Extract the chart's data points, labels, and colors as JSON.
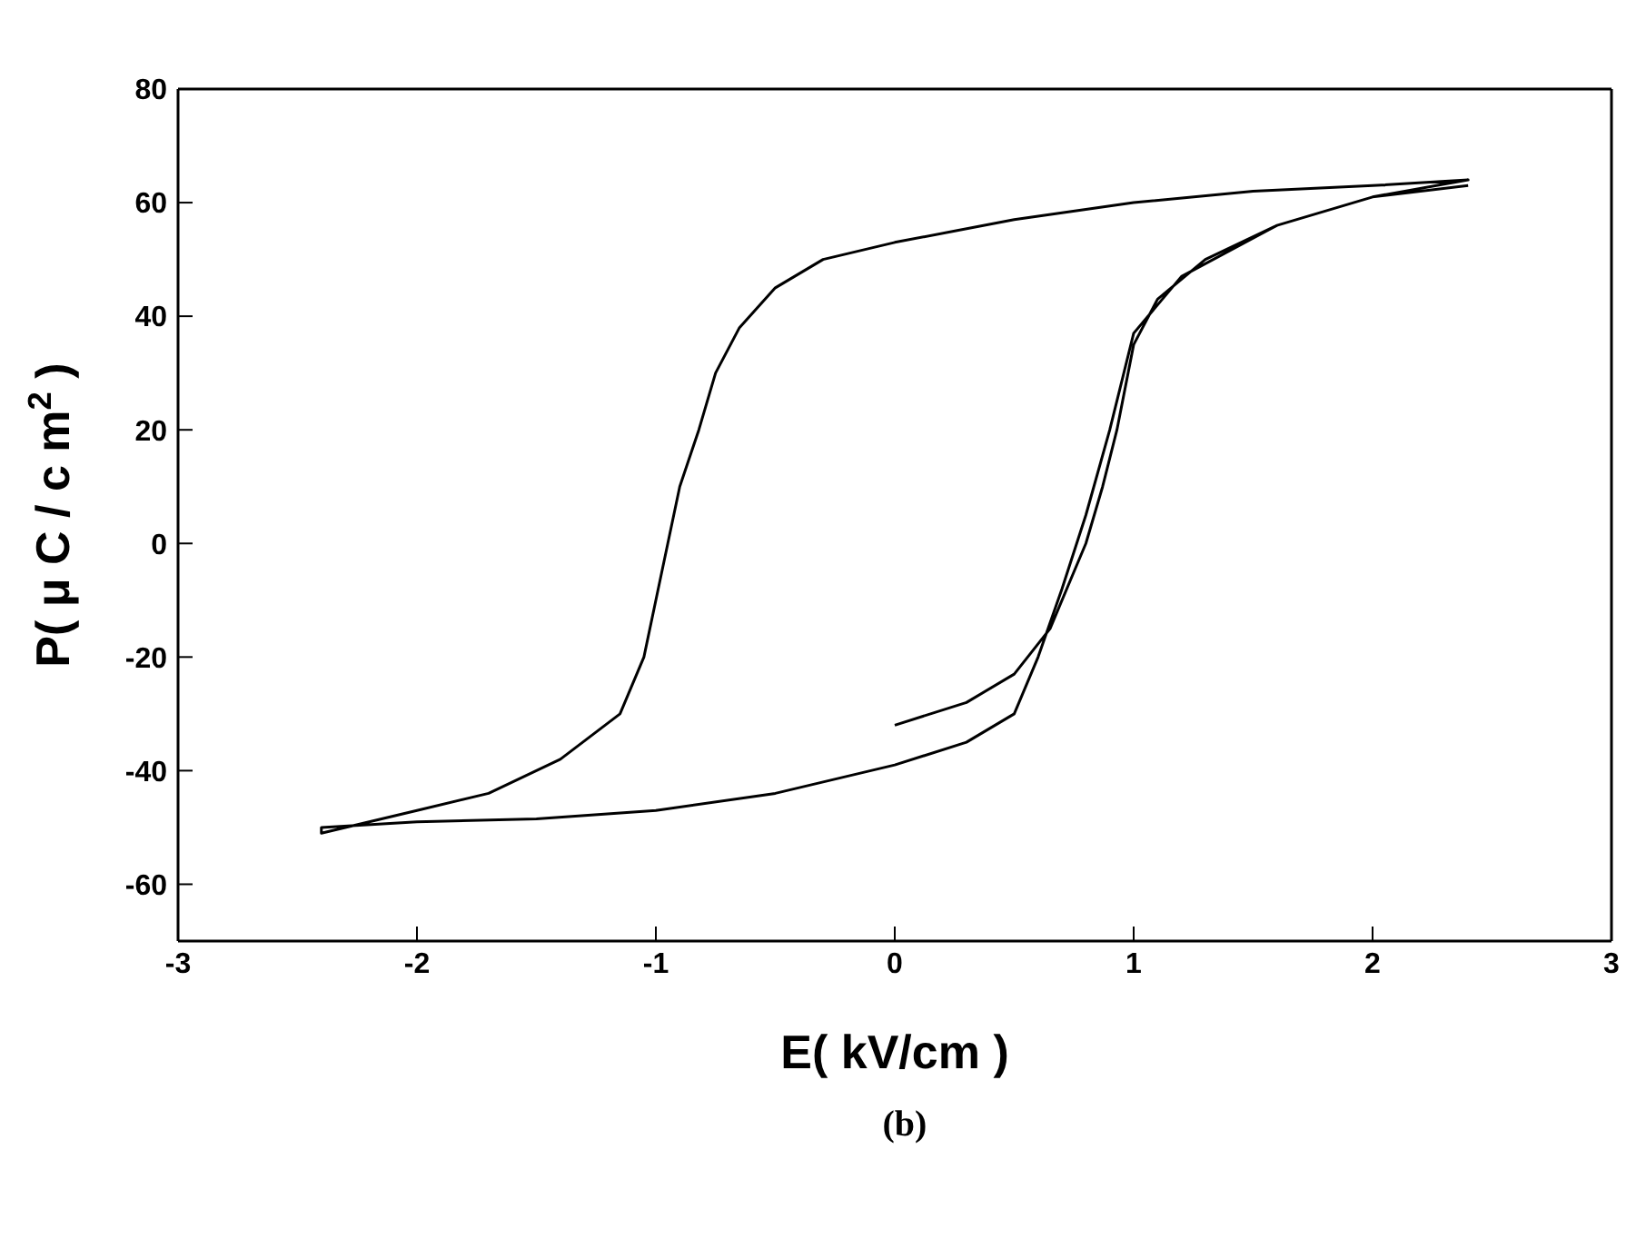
{
  "chart_data": {
    "type": "line",
    "xlabel": "E( kV/cm   )",
    "ylabel": "P( μ C / c m$^{2}$ )",
    "annotations": [
      "(b)"
    ],
    "xlim": [
      -3,
      3
    ],
    "xticks": [
      -3,
      -2,
      -1,
      0,
      1,
      2,
      3
    ],
    "ylim": [
      -70,
      80
    ],
    "yticks": [
      -60,
      -40,
      -20,
      0,
      20,
      40,
      60,
      80
    ],
    "grid": false,
    "marker": "none",
    "line_style": "solid",
    "series": [
      {
        "color": "#000000",
        "x": [
          0,
          0.3,
          0.5,
          0.65,
          0.75,
          0.8,
          0.87,
          0.93,
          1.0,
          1.1,
          1.3,
          1.6,
          2.0,
          2.4,
          2.0,
          1.5,
          1.0,
          0.5,
          0.0,
          -0.3,
          -0.5,
          -0.65,
          -0.75,
          -0.82,
          -0.9,
          -0.95,
          -1.0,
          -1.05,
          -1.15,
          -1.4,
          -1.7,
          -2.0,
          -2.4,
          -2.4,
          -2.0,
          -1.5,
          -1.0,
          -0.5,
          0.0,
          0.3,
          0.5,
          0.6,
          0.7,
          0.8,
          0.9,
          1.0,
          1.2,
          1.6,
          2.0,
          2.4
        ],
        "values": [
          -32,
          -28,
          -23,
          -15,
          -5,
          0,
          10,
          20,
          35,
          43,
          50,
          56,
          61,
          64,
          63,
          62,
          60,
          57,
          53,
          50,
          45,
          38,
          30,
          20,
          10,
          0,
          -10,
          -20,
          -30,
          -38,
          -44,
          -47,
          -51,
          -50,
          -49,
          -48.5,
          -47,
          -44,
          -39,
          -35,
          -30,
          -20,
          -8,
          5,
          20,
          37,
          47,
          56,
          61,
          63
        ]
      }
    ]
  }
}
